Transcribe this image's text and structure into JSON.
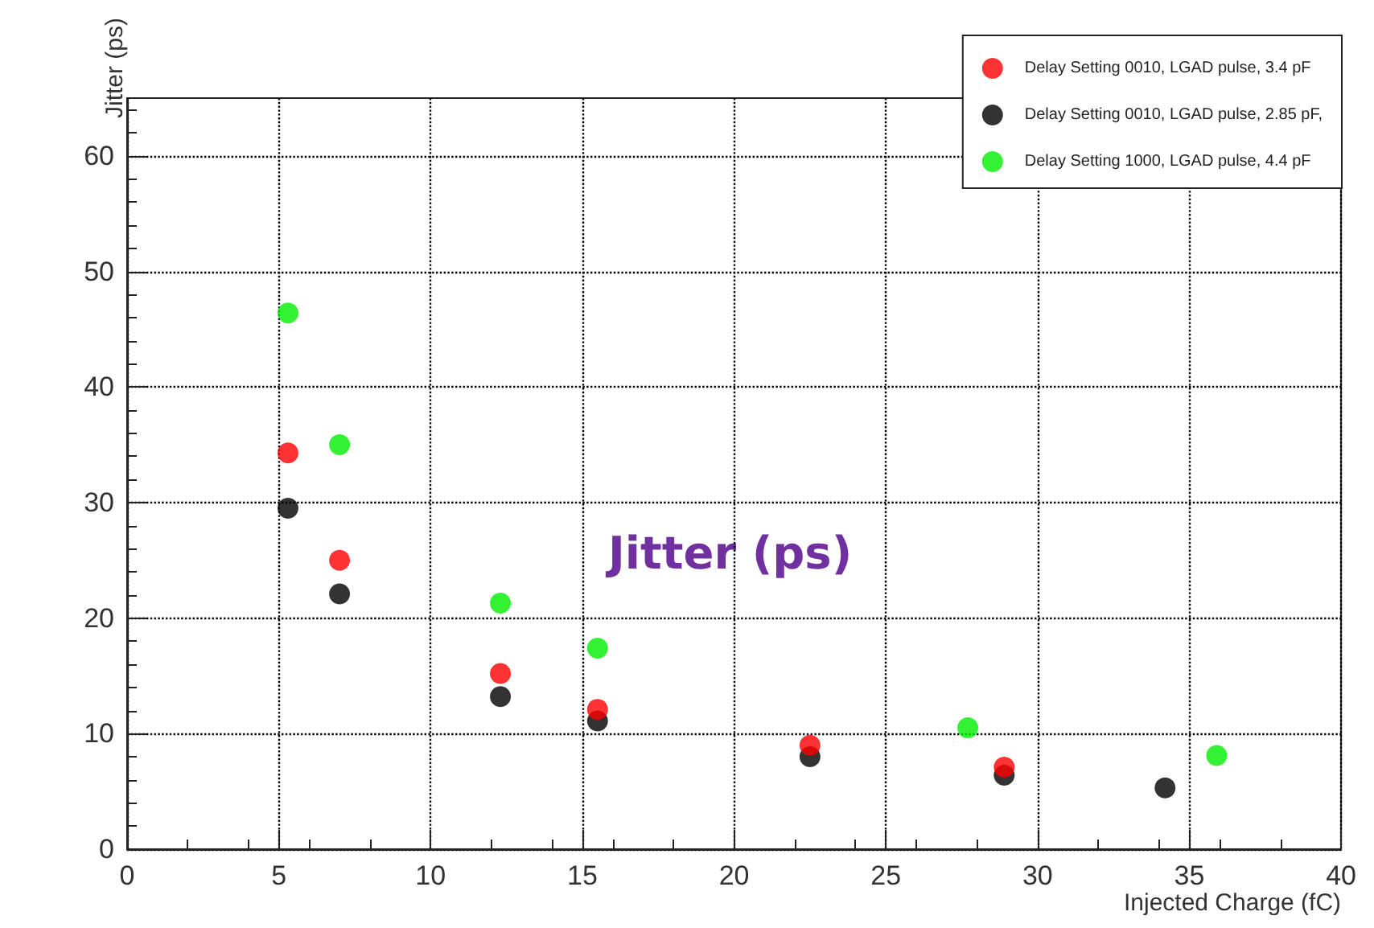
{
  "chart_data": {
    "type": "scatter",
    "xlabel": "Injected Charge (fC)",
    "ylabel": "Jitter (ps)",
    "xlim": [
      0,
      40
    ],
    "xticks": [
      0,
      5,
      10,
      15,
      20,
      25,
      30,
      35,
      40
    ],
    "ylim": [
      0,
      65
    ],
    "yticks": [
      0,
      10,
      20,
      30,
      40,
      50,
      60
    ],
    "grid": true,
    "legend": "top right",
    "marker": "circle",
    "annotations": [
      "Jitter (ps)"
    ],
    "series": [
      {
        "name": "Delay Setting 0010, LGAD pulse, 3.4 pF",
        "color": "#ff0000",
        "x": [
          5.3,
          7.0,
          12.3,
          15.5,
          22.5,
          28.9
        ],
        "values": [
          34.3,
          25,
          15.2,
          12.1,
          9,
          7.1
        ]
      },
      {
        "name": "Delay Setting 0010, LGAD pulse, 2.85 pF,",
        "color": "#000000",
        "x": [
          5.3,
          7.0,
          12.3,
          15.5,
          22.5,
          28.9,
          34.2
        ],
        "values": [
          29.5,
          22.1,
          13.2,
          11.1,
          8,
          6.4,
          5.3
        ]
      },
      {
        "name": "Delay Setting 1000, LGAD pulse, 4.4 pF",
        "color": "#00ee00",
        "x": [
          5.3,
          7.0,
          12.3,
          15.5,
          27.7,
          35.9
        ],
        "values": [
          46.4,
          35,
          21.3,
          17.4,
          10.5,
          8.1
        ]
      }
    ]
  }
}
